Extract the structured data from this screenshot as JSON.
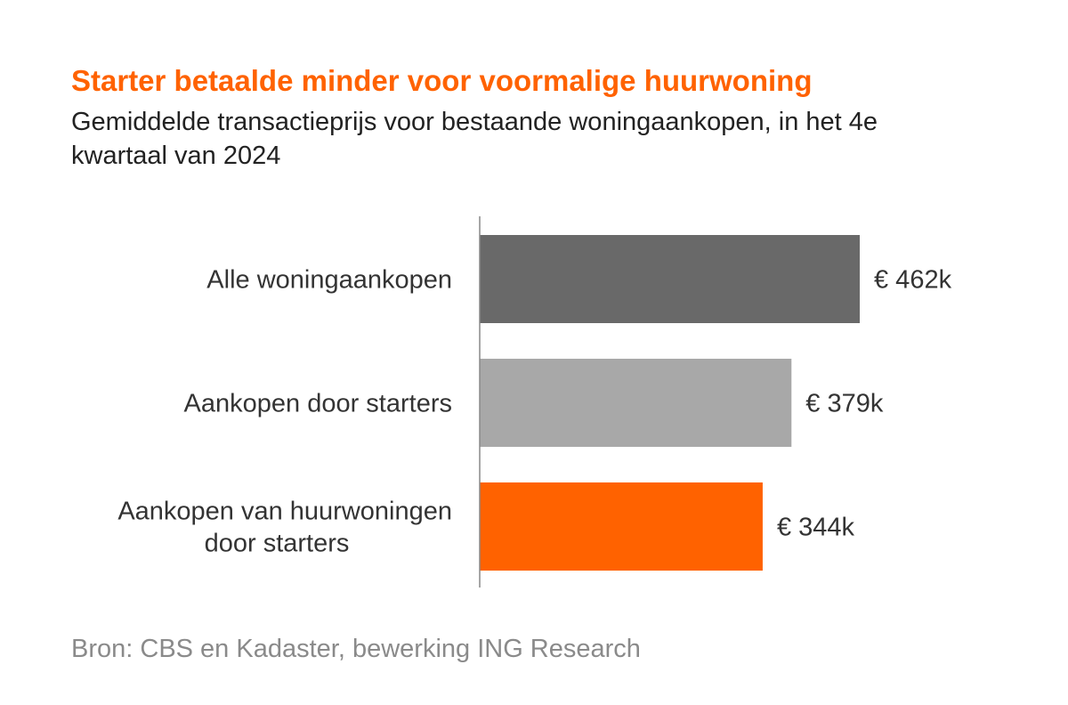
{
  "header": {
    "title": "Starter betaalde minder voor voormalige huurwoning",
    "subtitle": "Gemiddelde transactieprijs voor bestaande woningaankopen, in het 4e kwartaal van 2024"
  },
  "footer": {
    "source": "Bron: CBS en Kadaster, bewerking ING Research"
  },
  "chart_data": {
    "type": "bar",
    "orientation": "horizontal",
    "categories": [
      [
        "Alle woningaankopen"
      ],
      [
        "Aankopen door starters"
      ],
      [
        "Aankopen van huurwoningen",
        "door starters"
      ]
    ],
    "values": [
      462,
      379,
      344
    ],
    "value_labels": [
      "€ 462k",
      "€ 379k",
      "€ 344k"
    ],
    "colors": [
      "#696969",
      "#a8a8a8",
      "#ff6200"
    ],
    "title": "Starter betaalde minder voor voormalige huurwoning",
    "subtitle": "Gemiddelde transactieprijs voor bestaande woningaankopen, in het 4e kwartaal van 2024",
    "xlim": [
      0,
      462
    ],
    "grid": false,
    "legend": "none",
    "axis_color": "#888888"
  }
}
